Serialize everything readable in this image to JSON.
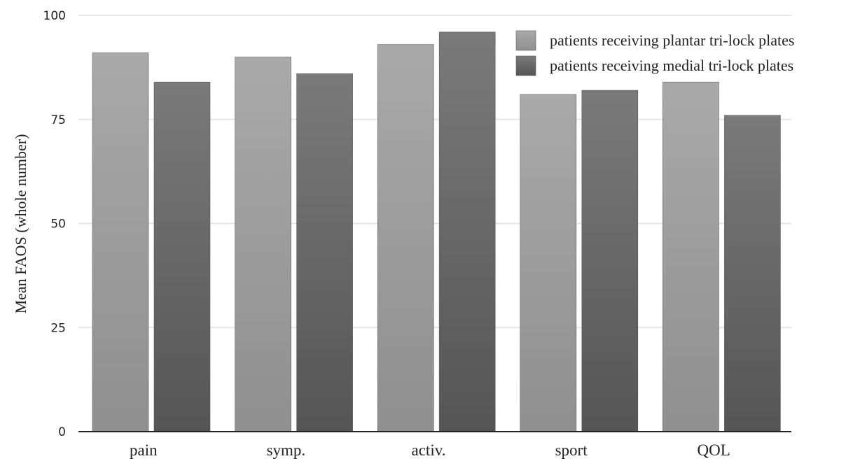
{
  "chart_data": {
    "type": "bar",
    "title": "",
    "xlabel": "",
    "ylabel": "Mean FAOS (whole number)",
    "ylim": [
      0,
      100
    ],
    "yticks": [
      0,
      25,
      50,
      75,
      100
    ],
    "grid": true,
    "legend_position": "top-right",
    "categories": [
      "pain",
      "symp.",
      "activ.",
      "sport",
      "QOL"
    ],
    "series": [
      {
        "name": "patients receiving plantar tri-lock plates",
        "color": "#a3a3a3",
        "values": [
          91,
          90,
          93,
          81,
          84
        ]
      },
      {
        "name": "patients receiving medial tri-lock plates",
        "color": "#666666",
        "values": [
          84,
          86,
          96,
          82,
          76
        ]
      }
    ]
  }
}
